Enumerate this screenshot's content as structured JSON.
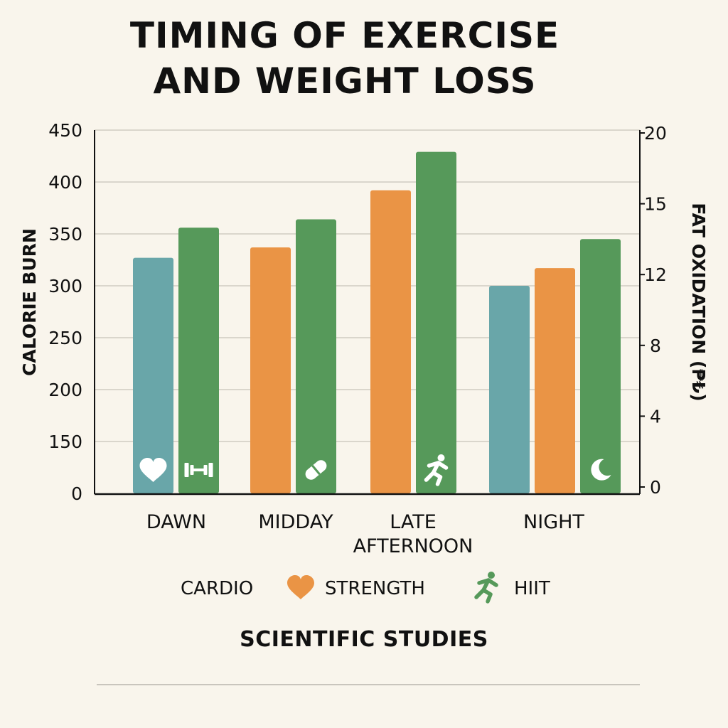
{
  "title_lines": [
    "TIMING OF EXERCISE",
    "AND WEIGHT LOSS"
  ],
  "footer": "SCIENTIFIC STUDIES",
  "chart_data": {
    "type": "bar",
    "title": "TIMING OF EXERCISE AND WEIGHT LOSS",
    "ylabel": "CALORIE BURN",
    "y2label": "FAT OXIDATION (₱₺)",
    "y_ticks": [
      "0",
      "150",
      "200",
      "250",
      "300",
      "350",
      "400",
      "450"
    ],
    "y2_ticks": [
      "0",
      "4",
      "8",
      "12",
      "15",
      "20"
    ],
    "categories": [
      {
        "label": [
          "DAWN"
        ]
      },
      {
        "label": [
          "MIDDAY"
        ]
      },
      {
        "label": [
          "LATE",
          "AFTERNOON"
        ]
      },
      {
        "label": [
          "NIGHT"
        ]
      }
    ],
    "bars": [
      {
        "category": 0,
        "series": "CARDIO",
        "value": 327,
        "icon": "heart-icon"
      },
      {
        "category": 0,
        "series": "HIIT",
        "value": 356,
        "icon": "dumbbell-icon"
      },
      {
        "category": 1,
        "series": "STRENGTH",
        "value": 337,
        "icon": ""
      },
      {
        "category": 1,
        "series": "HIIT",
        "value": 364,
        "icon": "pill-icon"
      },
      {
        "category": 2,
        "series": "STRENGTH",
        "value": 392,
        "icon": ""
      },
      {
        "category": 2,
        "series": "HIIT",
        "value": 429,
        "icon": "runner-icon"
      },
      {
        "category": 3,
        "series": "CARDIO",
        "value": 300,
        "icon": ""
      },
      {
        "category": 3,
        "series": "STRENGTH",
        "value": 317,
        "icon": ""
      },
      {
        "category": 3,
        "series": "HIIT",
        "value": 345,
        "icon": "moon-icon"
      }
    ],
    "series": [
      {
        "name": "CARDIO",
        "color": "#69a6a9"
      },
      {
        "name": "STRENGTH",
        "color": "#ea9445"
      },
      {
        "name": "HIIT",
        "color": "#56995a"
      }
    ],
    "legend": [
      {
        "label": "CARDIO",
        "icon": ""
      },
      {
        "label": "STRENGTH",
        "icon": "heart-icon",
        "color": "#ea9445"
      },
      {
        "label": "HIIT",
        "icon": "runner-icon",
        "color": "#56995a"
      }
    ],
    "grid": true,
    "legend_position": "bottom"
  }
}
